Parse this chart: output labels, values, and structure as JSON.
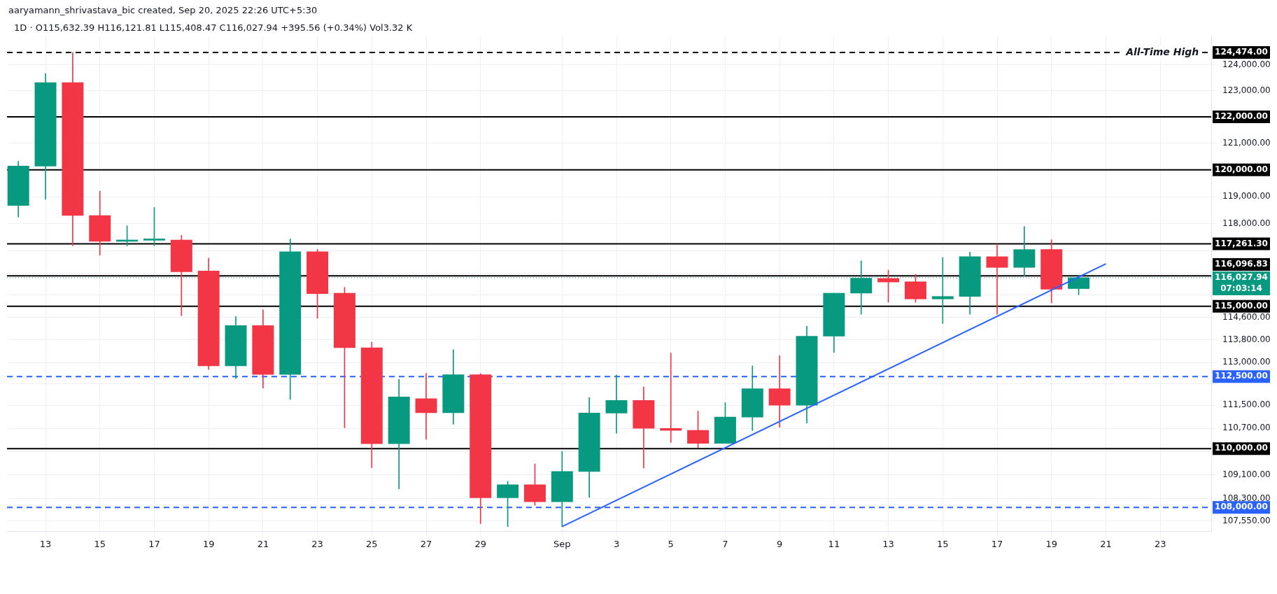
{
  "chart_data": {
    "type": "candlestick",
    "subtitle": "1D · O115,632.39 H116,121.81 L115,408.47 C116,027.94 +395.56 (+0.34%) Vol3.32 K",
    "x": [
      "2025-08-12",
      "2025-08-13",
      "2025-08-14",
      "2025-08-15",
      "2025-08-16",
      "2025-08-17",
      "2025-08-18",
      "2025-08-19",
      "2025-08-20",
      "2025-08-21",
      "2025-08-22",
      "2025-08-23",
      "2025-08-24",
      "2025-08-25",
      "2025-08-26",
      "2025-08-27",
      "2025-08-28",
      "2025-08-29",
      "2025-08-30",
      "2025-08-31",
      "2025-09-01",
      "2025-09-02",
      "2025-09-03",
      "2025-09-04",
      "2025-09-05",
      "2025-09-06",
      "2025-09-07",
      "2025-09-08",
      "2025-09-09",
      "2025-09-10",
      "2025-09-11",
      "2025-09-12",
      "2025-09-13",
      "2025-09-14",
      "2025-09-15",
      "2025-09-16",
      "2025-09-17",
      "2025-09-18",
      "2025-09-19",
      "2025-09-20"
    ],
    "ohlc": [
      [
        118670,
        120320,
        118240,
        120140
      ],
      [
        120140,
        123660,
        118900,
        123310
      ],
      [
        123310,
        124474,
        117190,
        118300
      ],
      [
        118300,
        119200,
        116850,
        117350
      ],
      [
        117350,
        117920,
        117180,
        117390
      ],
      [
        117390,
        118600,
        117190,
        117410
      ],
      [
        117400,
        117570,
        114660,
        116240
      ],
      [
        116270,
        116740,
        112750,
        112880
      ],
      [
        112880,
        114630,
        112430,
        114310
      ],
      [
        114310,
        114870,
        112100,
        112580
      ],
      [
        112580,
        117440,
        111700,
        116970
      ],
      [
        116970,
        117060,
        114570,
        115450
      ],
      [
        115470,
        115680,
        110720,
        113520
      ],
      [
        113520,
        113720,
        109350,
        110170
      ],
      [
        110170,
        112410,
        108630,
        111790
      ],
      [
        111730,
        112610,
        110320,
        111240
      ],
      [
        111240,
        113450,
        110840,
        112570
      ],
      [
        112570,
        112610,
        107460,
        108330
      ],
      [
        108330,
        108890,
        107360,
        108770
      ],
      [
        108770,
        109480,
        108070,
        108190
      ],
      [
        108190,
        109910,
        107360,
        109220
      ],
      [
        109220,
        111770,
        108340,
        111230
      ],
      [
        111230,
        112560,
        110530,
        111670
      ],
      [
        111670,
        112140,
        109340,
        110700
      ],
      [
        110700,
        113330,
        110210,
        110630
      ],
      [
        110630,
        111300,
        110030,
        110180
      ],
      [
        110180,
        111590,
        110180,
        111090
      ],
      [
        111090,
        112880,
        110620,
        112080
      ],
      [
        112080,
        113240,
        110740,
        111500
      ],
      [
        111500,
        114280,
        110880,
        113930
      ],
      [
        113930,
        115470,
        113350,
        115470
      ],
      [
        115470,
        116640,
        114710,
        116010
      ],
      [
        116000,
        116300,
        115140,
        115870
      ],
      [
        115880,
        116150,
        115140,
        115260
      ],
      [
        115260,
        116760,
        114380,
        115350
      ],
      [
        115350,
        116960,
        114710,
        116790
      ],
      [
        116790,
        117250,
        114710,
        116400
      ],
      [
        116400,
        117890,
        116085,
        117050
      ],
      [
        117050,
        117410,
        115120,
        115610
      ],
      [
        115632.39,
        116121.81,
        115408.47,
        116027.94
      ]
    ],
    "colors": [
      "#089981",
      "#089981",
      "#f23645",
      "#f23645",
      "#089981",
      "#089981",
      "#f23645",
      "#f23645",
      "#089981",
      "#f23645",
      "#089981",
      "#f23645",
      "#f23645",
      "#f23645",
      "#089981",
      "#f23645",
      "#089981",
      "#f23645",
      "#089981",
      "#f23645",
      "#089981",
      "#089981",
      "#089981",
      "#f23645",
      "#f23645",
      "#f23645",
      "#089981",
      "#089981",
      "#f23645",
      "#089981",
      "#089981",
      "#089981",
      "#f23645",
      "#f23645",
      "#089981",
      "#089981",
      "#f23645",
      "#089981",
      "#f23645",
      "#089981"
    ],
    "series": [
      {
        "type": "line",
        "x": [
          "2025-09-01",
          "2025-09-21"
        ],
        "values": [
          107360,
          116530
        ],
        "color": "#2962ff"
      }
    ],
    "log": true,
    "grid": true,
    "xlim": [
      "2025-08-11T14:00",
      "2025-09-24T21:00"
    ],
    "xticks": [
      {
        "value": "2025-08-13",
        "label": "13"
      },
      {
        "value": "2025-08-15",
        "label": "15"
      },
      {
        "value": "2025-08-17",
        "label": "17"
      },
      {
        "value": "2025-08-19",
        "label": "19"
      },
      {
        "value": "2025-08-21",
        "label": "21"
      },
      {
        "value": "2025-08-23",
        "label": "23"
      },
      {
        "value": "2025-08-25",
        "label": "25"
      },
      {
        "value": "2025-08-27",
        "label": "27"
      },
      {
        "value": "2025-08-29",
        "label": "29"
      },
      {
        "value": "2025-09-01",
        "label": "Sep"
      },
      {
        "value": "2025-09-03",
        "label": "3"
      },
      {
        "value": "2025-09-05",
        "label": "5"
      },
      {
        "value": "2025-09-07",
        "label": "7"
      },
      {
        "value": "2025-09-09",
        "label": "9"
      },
      {
        "value": "2025-09-11",
        "label": "11"
      },
      {
        "value": "2025-09-13",
        "label": "13"
      },
      {
        "value": "2025-09-15",
        "label": "15"
      },
      {
        "value": "2025-09-17",
        "label": "17"
      },
      {
        "value": "2025-09-19",
        "label": "19"
      },
      {
        "value": "2025-09-21",
        "label": "21"
      },
      {
        "value": "2025-09-23",
        "label": "23"
      }
    ],
    "ylim": [
      107200,
      125100
    ],
    "yticks": [
      {
        "value": 124000,
        "label": "124,000.00"
      },
      {
        "value": 123000,
        "label": "123,000.00"
      },
      {
        "value": 121000,
        "label": "121,000.00"
      },
      {
        "value": 119000,
        "label": "119,000.00"
      },
      {
        "value": 118000,
        "label": "118,000.00"
      },
      {
        "value": 117000,
        "label": null
      },
      {
        "value": 116200,
        "label": null
      },
      {
        "value": 115400,
        "label": null
      },
      {
        "value": 114600,
        "label": "114,600.00"
      },
      {
        "value": 113800,
        "label": "113,800.00"
      },
      {
        "value": 113000,
        "label": "113,000.00"
      },
      {
        "value": 112250,
        "label": null
      },
      {
        "value": 111500,
        "label": "111,500.00"
      },
      {
        "value": 110700,
        "label": "110,700.00"
      },
      {
        "value": 109900,
        "label": null
      },
      {
        "value": 109100,
        "label": "109,100.00"
      },
      {
        "value": 108300,
        "label": "108,300.00"
      },
      {
        "value": 107550,
        "label": "107,550.00"
      }
    ],
    "ref_lines": [
      {
        "axis": "y",
        "value": 124474,
        "label": "124,474.00",
        "color": "#000000",
        "line_style": "dashed"
      },
      {
        "axis": "y",
        "value": 122000,
        "label": "122,000.00",
        "color": "#000000",
        "line_style": "solid"
      },
      {
        "axis": "y",
        "value": 120000,
        "label": "120,000.00",
        "color": "#000000",
        "line_style": "solid"
      },
      {
        "axis": "y",
        "value": 117261.3,
        "label": "117,261.30",
        "color": "#000000",
        "line_style": "solid"
      },
      {
        "axis": "y",
        "value": 116096.83,
        "label": "116,096.83",
        "color": "#000000",
        "line_style": "solid"
      },
      {
        "axis": "y",
        "value": 116027.94,
        "label": "116,027.94\n07:03:14",
        "color": "#089981",
        "line_style": "dotted"
      },
      {
        "axis": "y",
        "value": 115000,
        "label": "115,000.00",
        "color": "#000000",
        "line_style": "solid"
      },
      {
        "axis": "y",
        "value": 112500,
        "label": "112,500.00",
        "color": "#2962ff",
        "line_style": "dashed"
      },
      {
        "axis": "y",
        "value": 110000,
        "label": "110,000.00",
        "color": "#000000",
        "line_style": "solid"
      },
      {
        "axis": "y",
        "value": 108000,
        "label": "108,000.00",
        "color": "#2962ff",
        "line_style": "dashed"
      }
    ],
    "annotations": [
      "aaryamann_shrivastava_bic created, Sep 20, 2025 22:26 UTC+5:30",
      {
        "text": "All-Time High",
        "x": "2025-09-24T10:00",
        "y": 124474
      }
    ]
  }
}
